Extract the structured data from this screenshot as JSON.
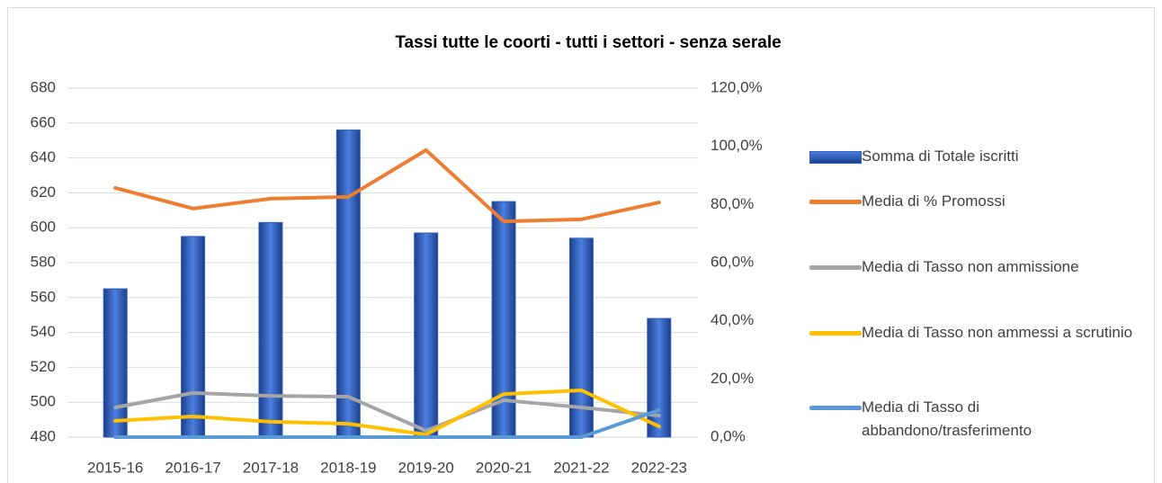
{
  "chart_data": {
    "type": "bar-line",
    "title": "Tassi tutte le coorti - tutti i settori - senza serale",
    "categories": [
      "2015-16",
      "2016-17",
      "2017-18",
      "2018-19",
      "2019-20",
      "2020-21",
      "2021-22",
      "2022-23"
    ],
    "series": [
      {
        "name": "Somma di Totale iscritti",
        "type": "bar",
        "color": "#2f5fbf",
        "values": [
          565,
          595,
          603,
          656,
          597,
          615,
          594,
          548
        ]
      },
      {
        "name": "Media di % Promossi",
        "type": "line",
        "axis": "y2",
        "color": "#ed7d31",
        "values": [
          85.7,
          78.6,
          82.0,
          82.6,
          98.7,
          74.2,
          74.9,
          80.7
        ]
      },
      {
        "name": "Media di Tasso non ammissione",
        "type": "line",
        "axis": "y2",
        "color": "#a5a5a5",
        "values": [
          10.2,
          15.2,
          14.2,
          13.9,
          2.2,
          12.7,
          10.2,
          7.4
        ]
      },
      {
        "name": "Media di Tasso non ammessi a scrutinio",
        "type": "line",
        "axis": "y2",
        "color": "#ffc000",
        "values": [
          5.6,
          7.1,
          5.3,
          4.6,
          0.9,
          14.8,
          16.1,
          3.7
        ]
      },
      {
        "name": "Media di Tasso di abbandono/trasferimento",
        "type": "line",
        "axis": "y2",
        "color": "#5b9bd5",
        "values": [
          0,
          0,
          0,
          0,
          0,
          0,
          0,
          9.3
        ]
      }
    ],
    "ylim": [
      480,
      680
    ],
    "yticks": [
      480,
      500,
      520,
      540,
      560,
      580,
      600,
      620,
      640,
      660,
      680
    ],
    "y2lim": [
      0,
      120
    ],
    "y2ticks": [
      {
        "value": 0,
        "label": "0,0%"
      },
      {
        "value": 20,
        "label": "20,0%"
      },
      {
        "value": 40,
        "label": "40,0%"
      },
      {
        "value": 60,
        "label": "60,0%"
      },
      {
        "value": 80,
        "label": "80,0%"
      },
      {
        "value": 100,
        "label": "100,0%"
      },
      {
        "value": 120,
        "label": "120,0%"
      }
    ],
    "grid": true,
    "legend": "right"
  }
}
